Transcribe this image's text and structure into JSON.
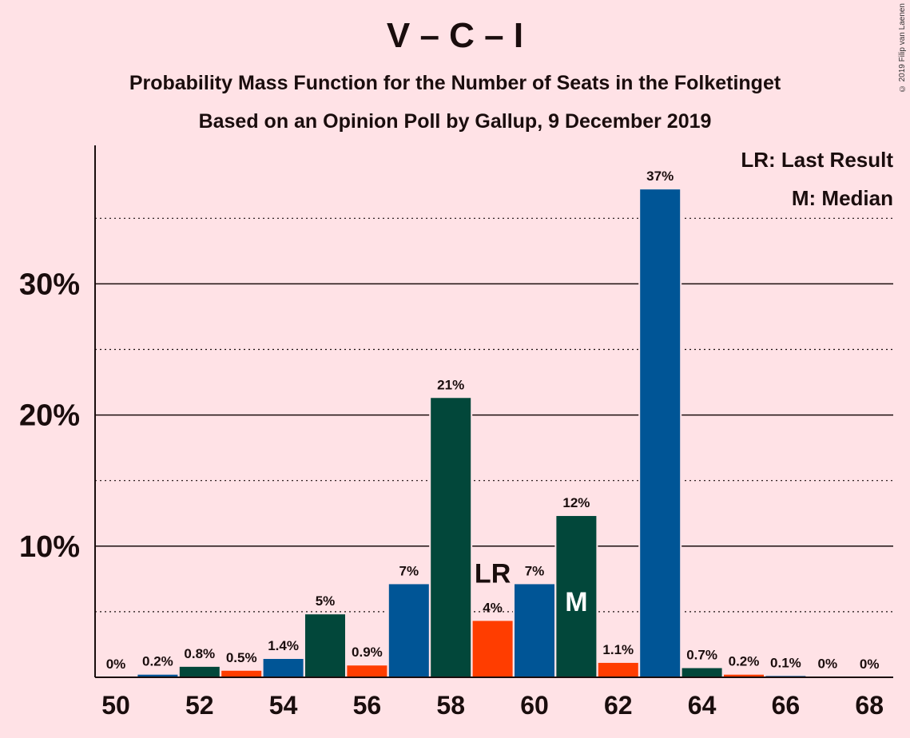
{
  "title": "V – C – I",
  "subtitle1": "Probability Mass Function for the Number of Seats in the Folketinget",
  "subtitle2": "Based on an Opinion Poll by Gallup, 9 December 2019",
  "copyright": "© 2019 Filip van Laenen",
  "legend": {
    "last_result": "LR: Last Result",
    "median": "M: Median"
  },
  "colors": {
    "blue": "#005596",
    "green": "#02473A",
    "orange": "#FF3D00",
    "background": "#FFE2E6"
  },
  "chart_data": {
    "type": "bar",
    "categories": [
      50,
      51,
      52,
      53,
      54,
      55,
      56,
      57,
      58,
      59,
      60,
      61,
      62,
      63,
      64,
      65,
      66,
      67,
      68
    ],
    "values": [
      0,
      0.2,
      0.8,
      0.5,
      1.4,
      4.8,
      0.9,
      7.1,
      21.3,
      4.3,
      7.1,
      12.3,
      1.1,
      37.2,
      0.7,
      0.2,
      0.1,
      0.02,
      0
    ],
    "labels": [
      "0%",
      "0.2%",
      "0.8%",
      "0.5%",
      "1.4%",
      "5%",
      "0.9%",
      "7%",
      "21%",
      "4%",
      "7%",
      "12%",
      "1.1%",
      "37%",
      "0.7%",
      "0.2%",
      "0.1%",
      "0%",
      "0%"
    ],
    "bar_colors": [
      "blue",
      "blue",
      "green",
      "orange",
      "blue",
      "green",
      "orange",
      "blue",
      "green",
      "orange",
      "blue",
      "green",
      "orange",
      "blue",
      "green",
      "orange",
      "blue",
      "green",
      "orange"
    ],
    "x_tick_labels": [
      "50",
      "52",
      "54",
      "56",
      "58",
      "60",
      "62",
      "64",
      "66",
      "68"
    ],
    "x_ticks": [
      50,
      52,
      54,
      56,
      58,
      60,
      62,
      64,
      66,
      68
    ],
    "y_ticks": [
      10,
      20,
      30
    ],
    "y_tick_labels": [
      "10%",
      "20%",
      "30%"
    ],
    "minor_gridlines": [
      5,
      15,
      25,
      35
    ],
    "ylim": [
      0,
      40
    ],
    "last_result": {
      "seats": 59,
      "marker": "LR"
    },
    "median": {
      "seats": 61,
      "marker": "M"
    },
    "legend_position": "top-right"
  }
}
